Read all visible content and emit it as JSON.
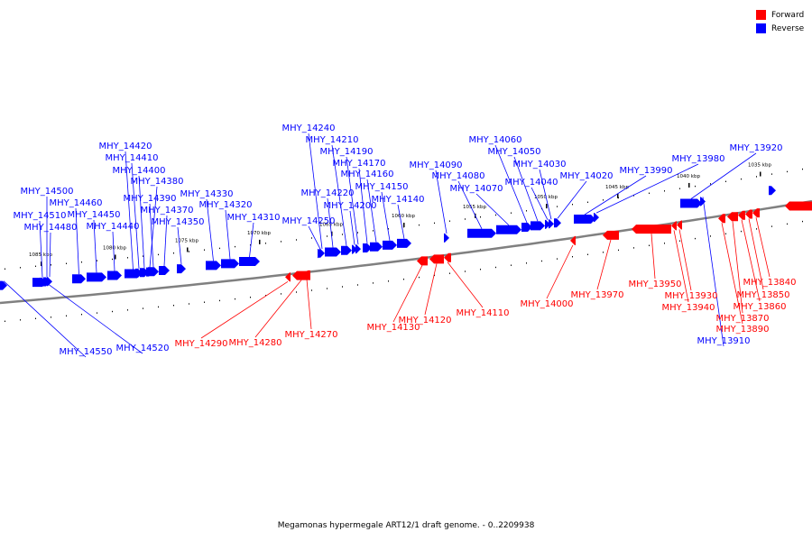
{
  "title": "Megamonas hypermegale ART12/1 draft genome. - 0..2209938",
  "legend": [
    {
      "label": "Forward",
      "color": "#ff0000"
    },
    {
      "label": "Reverse",
      "color": "#0000ff"
    }
  ],
  "colors": {
    "forward": "#ff0000",
    "reverse": "#0000ff",
    "backbone": "#808080"
  },
  "ticks": [
    {
      "label": "1085 kbp"
    },
    {
      "label": "1080 kbp"
    },
    {
      "label": "1075 kbp"
    },
    {
      "label": "1070 kbp"
    },
    {
      "label": "1065 kbp"
    },
    {
      "label": "1060 kbp"
    },
    {
      "label": "1055 kbp"
    },
    {
      "label": "1050 kbp"
    },
    {
      "label": "1045 kbp"
    },
    {
      "label": "1040 kbp"
    },
    {
      "label": "1035 kbp"
    }
  ],
  "genes": [
    {
      "label": "MHY_14550",
      "strand": "reverse"
    },
    {
      "label": "MHY_14520",
      "strand": "reverse"
    },
    {
      "label": "MHY_14510",
      "strand": "reverse"
    },
    {
      "label": "MHY_14500",
      "strand": "reverse"
    },
    {
      "label": "MHY_14480",
      "strand": "reverse"
    },
    {
      "label": "MHY_14460",
      "strand": "reverse"
    },
    {
      "label": "MHY_14450",
      "strand": "reverse"
    },
    {
      "label": "MHY_14440",
      "strand": "reverse"
    },
    {
      "label": "MHY_14420",
      "strand": "reverse"
    },
    {
      "label": "MHY_14410",
      "strand": "reverse"
    },
    {
      "label": "MHY_14400",
      "strand": "reverse"
    },
    {
      "label": "MHY_14390",
      "strand": "reverse"
    },
    {
      "label": "MHY_14380",
      "strand": "reverse"
    },
    {
      "label": "MHY_14370",
      "strand": "reverse"
    },
    {
      "label": "MHY_14350",
      "strand": "reverse"
    },
    {
      "label": "MHY_14330",
      "strand": "reverse"
    },
    {
      "label": "MHY_14320",
      "strand": "reverse"
    },
    {
      "label": "MHY_14310",
      "strand": "reverse"
    },
    {
      "label": "MHY_14290",
      "strand": "forward"
    },
    {
      "label": "MHY_14280",
      "strand": "forward"
    },
    {
      "label": "MHY_14270",
      "strand": "forward"
    },
    {
      "label": "MHY_14250",
      "strand": "reverse"
    },
    {
      "label": "MHY_14240",
      "strand": "reverse"
    },
    {
      "label": "MHY_14220",
      "strand": "reverse"
    },
    {
      "label": "MHY_14210",
      "strand": "reverse"
    },
    {
      "label": "MHY_14200",
      "strand": "reverse"
    },
    {
      "label": "MHY_14190",
      "strand": "reverse"
    },
    {
      "label": "MHY_14170",
      "strand": "reverse"
    },
    {
      "label": "MHY_14160",
      "strand": "reverse"
    },
    {
      "label": "MHY_14150",
      "strand": "reverse"
    },
    {
      "label": "MHY_14140",
      "strand": "reverse"
    },
    {
      "label": "MHY_14130",
      "strand": "forward"
    },
    {
      "label": "MHY_14120",
      "strand": "forward"
    },
    {
      "label": "MHY_14110",
      "strand": "forward"
    },
    {
      "label": "MHY_14090",
      "strand": "reverse"
    },
    {
      "label": "MHY_14080",
      "strand": "reverse"
    },
    {
      "label": "MHY_14070",
      "strand": "reverse"
    },
    {
      "label": "MHY_14060",
      "strand": "reverse"
    },
    {
      "label": "MHY_14050",
      "strand": "reverse"
    },
    {
      "label": "MHY_14040",
      "strand": "reverse"
    },
    {
      "label": "MHY_14030",
      "strand": "reverse"
    },
    {
      "label": "MHY_14020",
      "strand": "reverse"
    },
    {
      "label": "MHY_14000",
      "strand": "forward"
    },
    {
      "label": "MHY_13990",
      "strand": "reverse"
    },
    {
      "label": "MHY_13980",
      "strand": "reverse"
    },
    {
      "label": "MHY_13970",
      "strand": "forward"
    },
    {
      "label": "MHY_13950",
      "strand": "forward"
    },
    {
      "label": "MHY_13940",
      "strand": "forward"
    },
    {
      "label": "MHY_13930",
      "strand": "forward"
    },
    {
      "label": "MHY_13920",
      "strand": "reverse"
    },
    {
      "label": "MHY_13910",
      "strand": "reverse"
    },
    {
      "label": "MHY_13890",
      "strand": "forward"
    },
    {
      "label": "MHY_13870",
      "strand": "forward"
    },
    {
      "label": "MHY_13860",
      "strand": "forward"
    },
    {
      "label": "MHY_13850",
      "strand": "forward"
    },
    {
      "label": "MHY_13840",
      "strand": "forward"
    }
  ]
}
